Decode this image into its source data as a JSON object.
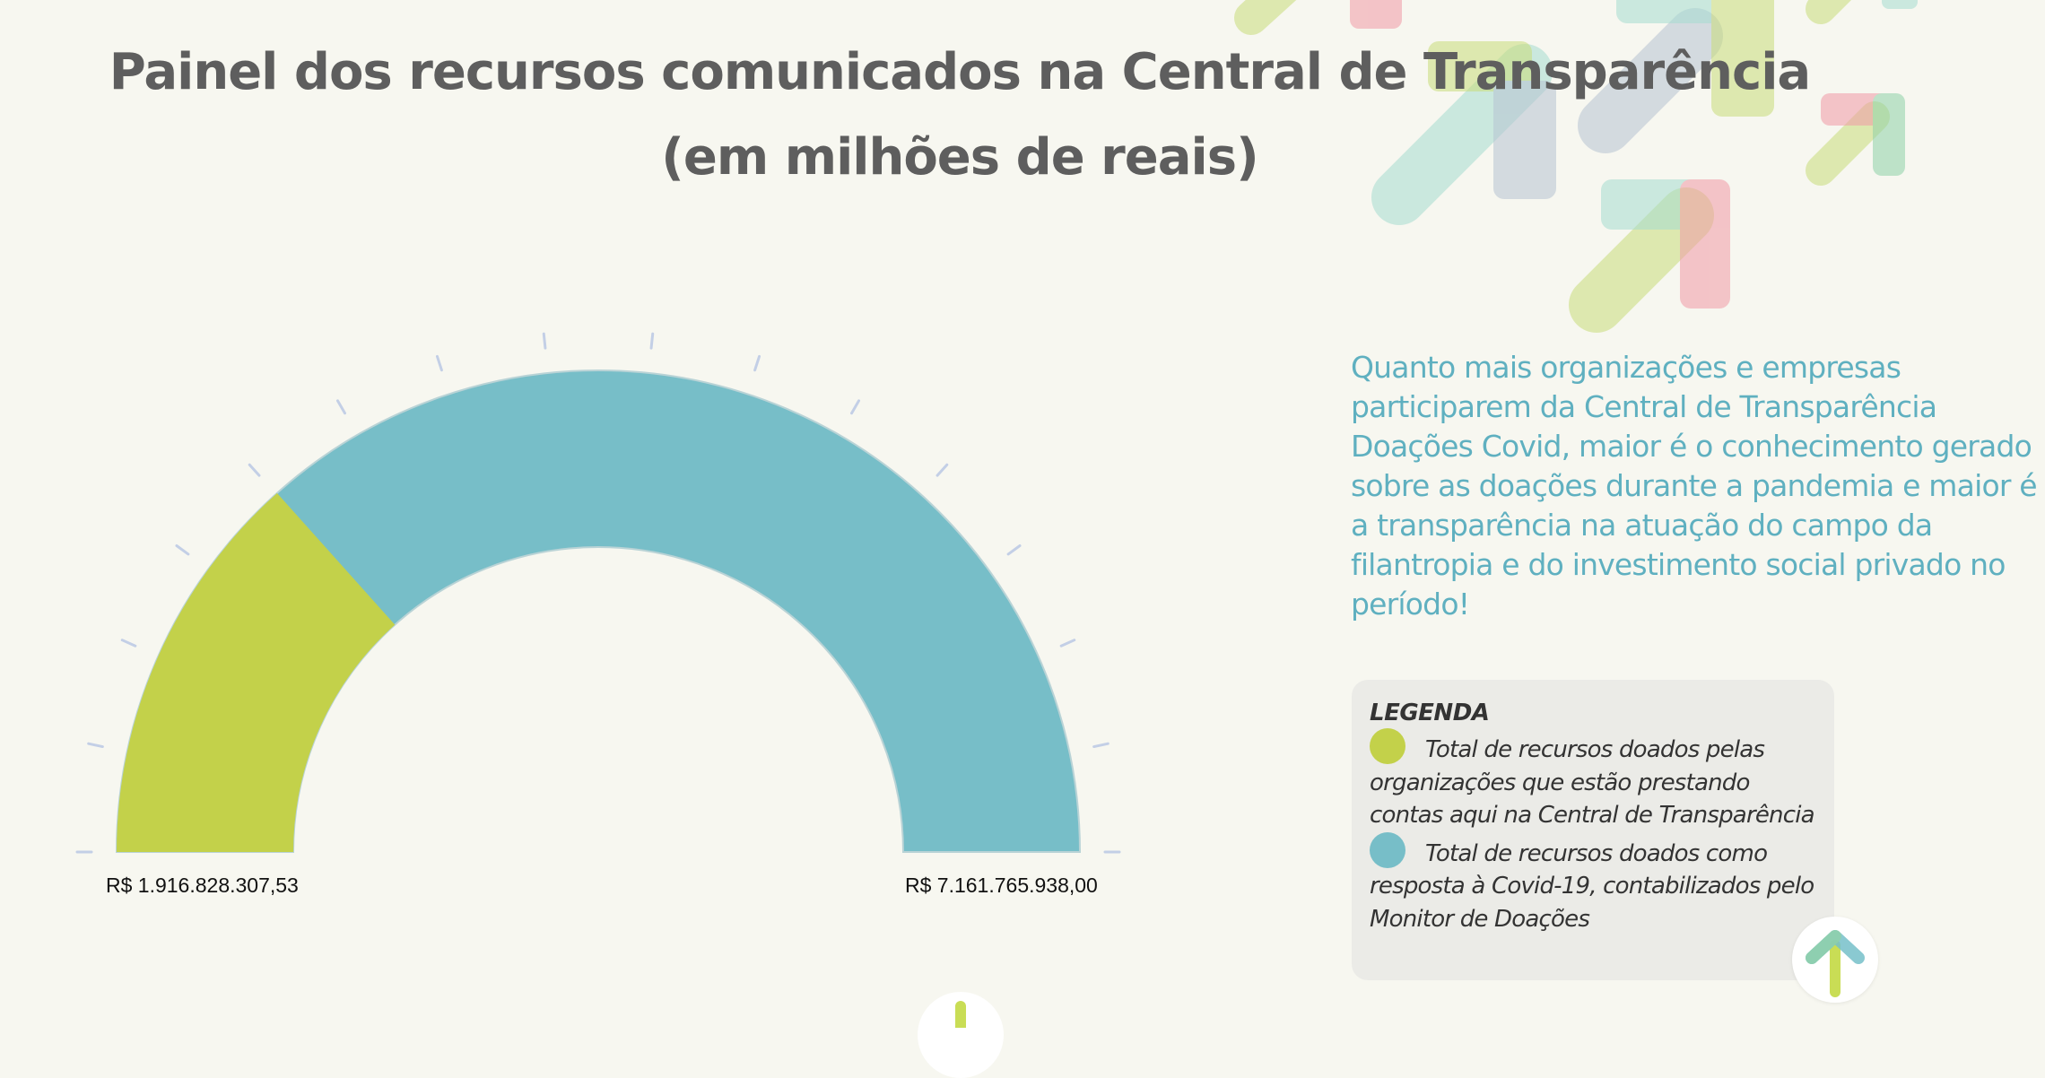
{
  "title": {
    "line1": "Painel dos recursos comunicados na Central de Transparência",
    "line2": "(em milhões de reais)"
  },
  "chart_data": {
    "type": "gauge",
    "min_label": "R$ 1.916.828.307,53",
    "max_label": "R$ 7.161.765.938,00",
    "value": 1916828307.53,
    "max": 7161765938.0,
    "series": [
      {
        "name": "Total de recursos doados pelas organizações que estão prestando contas aqui na Central de Transparência",
        "value": 1916828307.53,
        "color": "#c3d14a"
      },
      {
        "name": "Total de recursos doados como resposta à Covid-19, contabilizados pelo Monitor de Doações",
        "value": 7161765938.0,
        "color": "#77bec8"
      }
    ],
    "tick_count": 16
  },
  "intro_text": "Quanto mais organizações e empresas participarem da Central de Transparência Doações Covid, maior é o conhecimento gerado sobre as doações durante a pandemia e maior é a transparência na atuação do campo da filantropia e do investimento social privado no período!",
  "legend": {
    "title": "LEGENDA",
    "items": [
      {
        "color": "#c3d14a",
        "text": "Total de recursos doados pelas organizações que estão prestando contas aqui na Central de Transparência"
      },
      {
        "color": "#77bec8",
        "text": "Total de recursos doados como resposta à Covid-19, contabilizados pelo Monitor de Doações"
      }
    ]
  },
  "icons": {
    "back_to_top": "arrow-up-icon",
    "scroll_down": "arrow-down-icon",
    "decoration": "arrows-decoration-icon"
  }
}
